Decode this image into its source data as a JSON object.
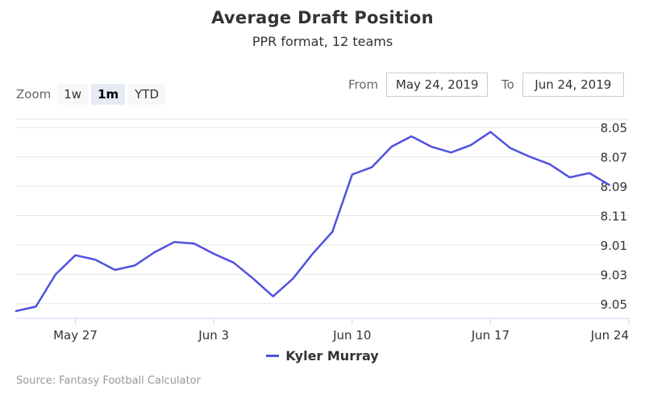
{
  "title": "Average Draft Position",
  "subtitle": "PPR format, 12 teams",
  "zoom": {
    "label": "Zoom",
    "buttons": [
      {
        "label": "1w",
        "active": false
      },
      {
        "label": "1m",
        "active": true
      },
      {
        "label": "YTD",
        "active": false
      }
    ]
  },
  "range": {
    "from_label": "From",
    "from_value": "May 24, 2019",
    "to_label": "To",
    "to_value": "Jun 24, 2019"
  },
  "credit": "Source: Fantasy Football Calculator",
  "colors": {
    "series": "#5051e0",
    "grid": "#e6e6e6",
    "axis": "#ccd6eb"
  },
  "chart_data": {
    "type": "line",
    "title": "Average Draft Position",
    "subtitle": "PPR format, 12 teams",
    "x_axis": {
      "type": "date",
      "ticks": [
        {
          "date": "2019-05-27",
          "label": "May 27"
        },
        {
          "date": "2019-06-03",
          "label": "Jun 3"
        },
        {
          "date": "2019-06-10",
          "label": "Jun 10"
        },
        {
          "date": "2019-06-17",
          "label": "Jun 17"
        },
        {
          "date": "2019-06-24",
          "label": "Jun 24"
        }
      ],
      "range": [
        "2019-05-24",
        "2019-06-24"
      ]
    },
    "y_axis": {
      "reversed": true,
      "position": "right",
      "tick_labels": [
        "8.05",
        "8.07",
        "8.09",
        "8.11",
        "9.01",
        "9.03",
        "9.05"
      ],
      "range_ticks": [
        8.04,
        9.06
      ]
    },
    "grid": true,
    "legend": "bottom",
    "series": [
      {
        "name": "Kyler Murray",
        "points": [
          {
            "x": "2019-05-24",
            "y": 9.055
          },
          {
            "x": "2019-05-25",
            "y": 9.052
          },
          {
            "x": "2019-05-26",
            "y": 9.03
          },
          {
            "x": "2019-05-27",
            "y": 9.017
          },
          {
            "x": "2019-05-28",
            "y": 9.02
          },
          {
            "x": "2019-05-29",
            "y": 9.027
          },
          {
            "x": "2019-05-30",
            "y": 9.024
          },
          {
            "x": "2019-05-31",
            "y": 9.015
          },
          {
            "x": "2019-06-01",
            "y": 9.008
          },
          {
            "x": "2019-06-02",
            "y": 9.009
          },
          {
            "x": "2019-06-03",
            "y": 9.016
          },
          {
            "x": "2019-06-04",
            "y": 9.022
          },
          {
            "x": "2019-06-05",
            "y": 9.033
          },
          {
            "x": "2019-06-06",
            "y": 9.045
          },
          {
            "x": "2019-06-07",
            "y": 9.033
          },
          {
            "x": "2019-06-08",
            "y": 9.016
          },
          {
            "x": "2019-06-09",
            "y": 8.121
          },
          {
            "x": "2019-06-10",
            "y": 8.082
          },
          {
            "x": "2019-06-11",
            "y": 8.077
          },
          {
            "x": "2019-06-12",
            "y": 8.063
          },
          {
            "x": "2019-06-13",
            "y": 8.056
          },
          {
            "x": "2019-06-14",
            "y": 8.063
          },
          {
            "x": "2019-06-15",
            "y": 8.067
          },
          {
            "x": "2019-06-16",
            "y": 8.062
          },
          {
            "x": "2019-06-17",
            "y": 8.053
          },
          {
            "x": "2019-06-18",
            "y": 8.064
          },
          {
            "x": "2019-06-19",
            "y": 8.07
          },
          {
            "x": "2019-06-20",
            "y": 8.075
          },
          {
            "x": "2019-06-21",
            "y": 8.084
          },
          {
            "x": "2019-06-22",
            "y": 8.081
          },
          {
            "x": "2019-06-23",
            "y": 8.089
          }
        ]
      }
    ]
  }
}
